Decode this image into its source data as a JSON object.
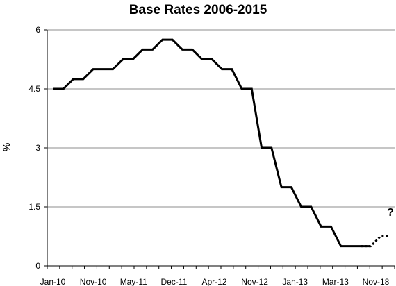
{
  "chart_data": {
    "type": "line",
    "title": "Base Rates 2006-2015",
    "xlabel": "",
    "ylabel": "%",
    "ylim": [
      0,
      6
    ],
    "yticks": [
      0,
      1.5,
      3,
      4.5,
      6
    ],
    "ytick_labels": [
      "0",
      "1.5",
      "3",
      "4.5",
      "6"
    ],
    "grid": true,
    "legend": "none",
    "line_color": "#000000",
    "grid_color": "#8c8c8c",
    "xtick_labels": [
      "Jan-10",
      "Nov-10",
      "May-11",
      "Dec-11",
      "Apr-12",
      "Nov-12",
      "Jan-13",
      "Mar-13",
      "Nov-18"
    ],
    "series": [
      {
        "style": "solid",
        "values": [
          4.5,
          4.5,
          4.75,
          4.75,
          5.0,
          5.0,
          5.0,
          5.25,
          5.25,
          5.5,
          5.5,
          5.75,
          5.75,
          5.5,
          5.5,
          5.25,
          5.25,
          5.0,
          5.0,
          4.5,
          4.5,
          3.0,
          3.0,
          2.0,
          2.0,
          1.5,
          1.5,
          1.0,
          1.0,
          0.5,
          0.5,
          0.5,
          0.5
        ]
      },
      {
        "style": "dotted",
        "values": [
          0.5,
          0.5,
          0.75,
          0.75
        ],
        "start_index": 31
      }
    ],
    "annotation": "?"
  }
}
